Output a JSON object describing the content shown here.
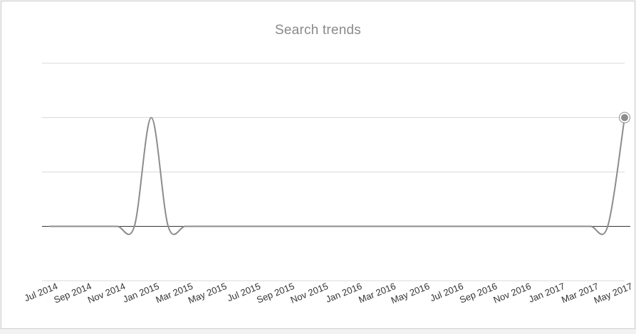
{
  "chart_data": {
    "type": "line",
    "title": "Search trends",
    "xlabel": "",
    "ylabel": "",
    "x_axis_labels": [
      "Jul 2014",
      "Sep 2014",
      "Nov 2014",
      "Jan 2015",
      "Mar 2015",
      "May 2015",
      "Jul 2015",
      "Sep 2015",
      "Nov 2015",
      "Jan 2016",
      "Mar 2016",
      "May 2016",
      "Jul 2016",
      "Sep 2016",
      "Nov 2016",
      "Jan 2017",
      "Mar 2017",
      "May 2017"
    ],
    "x": [
      "Jul 2014",
      "Aug 2014",
      "Sep 2014",
      "Oct 2014",
      "Nov 2014",
      "Dec 2014",
      "Jan 2015",
      "Feb 2015",
      "Mar 2015",
      "Apr 2015",
      "May 2015",
      "Jun 2015",
      "Jul 2015",
      "Aug 2015",
      "Sep 2015",
      "Oct 2015",
      "Nov 2015",
      "Dec 2015",
      "Jan 2016",
      "Feb 2016",
      "Mar 2016",
      "Apr 2016",
      "May 2016",
      "Jun 2016",
      "Jul 2016",
      "Aug 2016",
      "Sep 2016",
      "Oct 2016",
      "Nov 2016",
      "Dec 2016",
      "Jan 2017",
      "Feb 2017",
      "Mar 2017",
      "Apr 2017",
      "May 2017"
    ],
    "series": [
      {
        "values": [
          0,
          0,
          0,
          0,
          0,
          0,
          2,
          0,
          0,
          0,
          0,
          0,
          0,
          0,
          0,
          0,
          0,
          0,
          0,
          0,
          0,
          0,
          0,
          0,
          0,
          0,
          0,
          0,
          0,
          0,
          0,
          0,
          0,
          0,
          2
        ]
      }
    ],
    "ylim": [
      -1,
      3
    ],
    "y_gridlines": [
      -1,
      0,
      1,
      2,
      3
    ],
    "baseline": 0,
    "highlighted_point": "last",
    "grid": true,
    "legend": "none",
    "colors": {
      "line": "#8c8c8c",
      "baseline": "#333333",
      "gridline": "#d9d9d9",
      "point_fill": "#8c8c8c",
      "point_stroke": "#ffffff"
    }
  }
}
